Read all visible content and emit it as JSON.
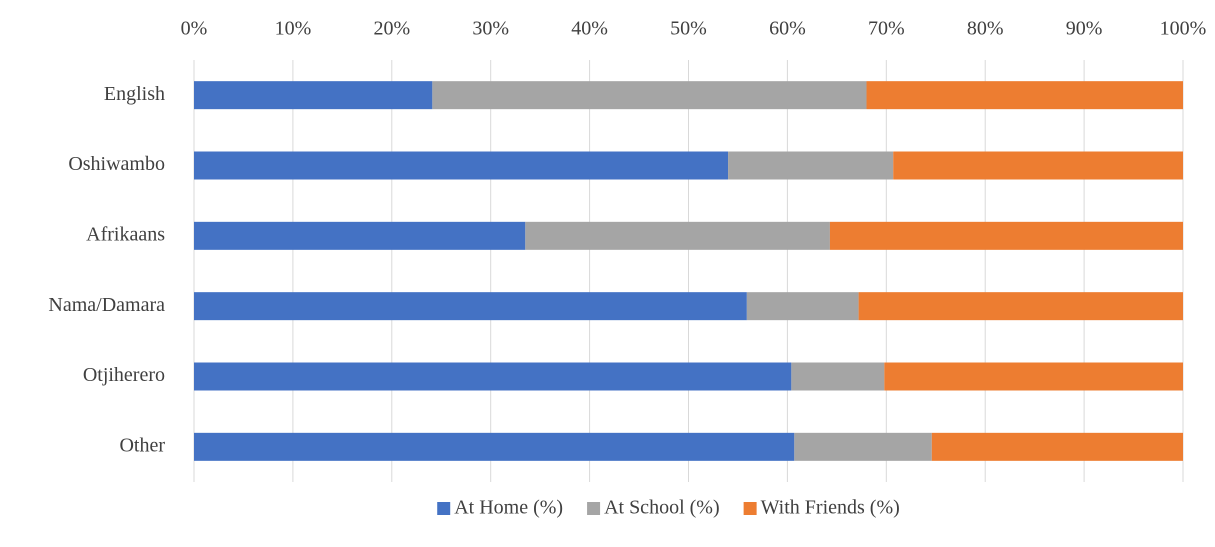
{
  "chart_data": {
    "type": "stacked_barh",
    "categories": [
      "English",
      "Oshiwambo",
      "Afrikaans",
      "Nama/Damara",
      "Otjiherero",
      "Other"
    ],
    "series": [
      {
        "name": "At Home (%)",
        "color": "#4472c4",
        "values": [
          24.1,
          54.0,
          33.5,
          55.9,
          60.4,
          60.7
        ]
      },
      {
        "name": "At School (%)",
        "color": "#a5a5a5",
        "values": [
          43.9,
          16.7,
          30.8,
          11.3,
          9.4,
          13.9
        ]
      },
      {
        "name": "With Friends (%)",
        "color": "#ed7d31",
        "values": [
          32.0,
          29.3,
          35.7,
          32.8,
          30.2,
          25.4
        ]
      }
    ],
    "xlim": [
      0,
      100
    ],
    "xticks": [
      {
        "value": 0,
        "label": "0%"
      },
      {
        "value": 10,
        "label": "10%"
      },
      {
        "value": 20,
        "label": "20%"
      },
      {
        "value": 30,
        "label": "30%"
      },
      {
        "value": 40,
        "label": "40%"
      },
      {
        "value": 50,
        "label": "50%"
      },
      {
        "value": 60,
        "label": "60%"
      },
      {
        "value": 70,
        "label": "70%"
      },
      {
        "value": 80,
        "label": "80%"
      },
      {
        "value": 90,
        "label": "90%"
      },
      {
        "value": 100,
        "label": "100%"
      }
    ],
    "grid": true,
    "legend": "bottom"
  }
}
